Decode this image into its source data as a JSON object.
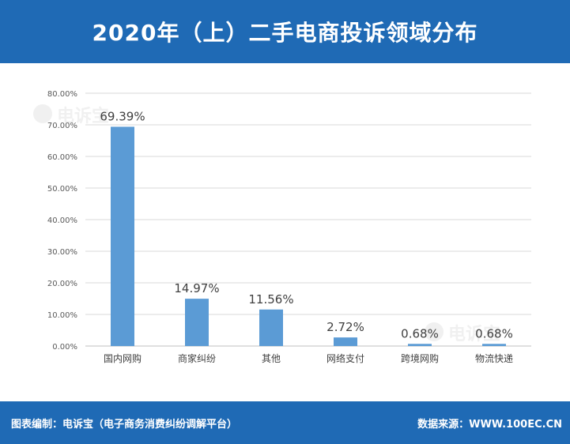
{
  "header": {
    "title": "2020年（上）二手电商投诉领域分布"
  },
  "footer": {
    "left": "图表编制：电诉宝（电子商务消费纠纷调解平台）",
    "right": "数据来源：WWW.100EC.CN"
  },
  "watermark": {
    "text": "电诉宝"
  },
  "colors": {
    "accent": "#1f6ab5",
    "bar": "#5b9bd5",
    "grid": "#d9d9d9"
  },
  "chart_data": {
    "type": "bar",
    "title": "2020年（上）二手电商投诉领域分布",
    "categories": [
      "国内网购",
      "商家纠纷",
      "其他",
      "网络支付",
      "跨境网购",
      "物流快递"
    ],
    "values": [
      69.39,
      14.97,
      11.56,
      2.72,
      0.68,
      0.68
    ],
    "data_labels": [
      "69.39%",
      "14.97%",
      "11.56%",
      "2.72%",
      "0.68%",
      "0.68%"
    ],
    "yticks": [
      "0.00%",
      "10.00%",
      "20.00%",
      "30.00%",
      "40.00%",
      "50.00%",
      "60.00%",
      "70.00%",
      "80.00%"
    ],
    "ylim": [
      0,
      80
    ],
    "grid": true,
    "legend": "none"
  }
}
